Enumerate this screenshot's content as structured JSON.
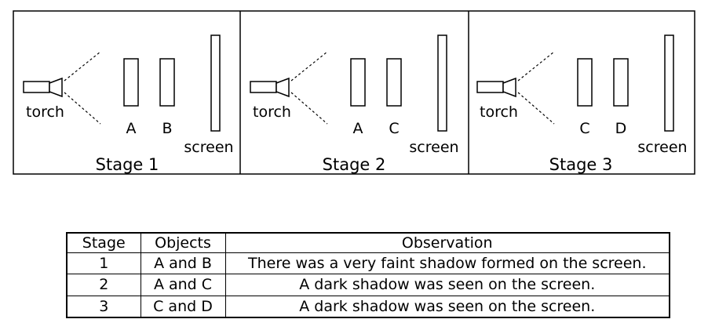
{
  "stages": [
    {
      "caption": "Stage 1",
      "source_label": "torch",
      "objects": [
        "A",
        "B"
      ],
      "screen_label": "screen"
    },
    {
      "caption": "Stage 2",
      "source_label": "torch",
      "objects": [
        "A",
        "C"
      ],
      "screen_label": "screen"
    },
    {
      "caption": "Stage 3",
      "source_label": "torch",
      "objects": [
        "C",
        "D"
      ],
      "screen_label": "screen"
    }
  ],
  "table": {
    "headers": [
      "Stage",
      "Objects",
      "Observation"
    ],
    "rows": [
      [
        "1",
        "A and B",
        "There was a very faint shadow formed on the screen."
      ],
      [
        "2",
        "A and C",
        "A dark shadow was seen on the screen."
      ],
      [
        "3",
        "C and D",
        "A dark shadow was seen on the screen."
      ]
    ]
  }
}
